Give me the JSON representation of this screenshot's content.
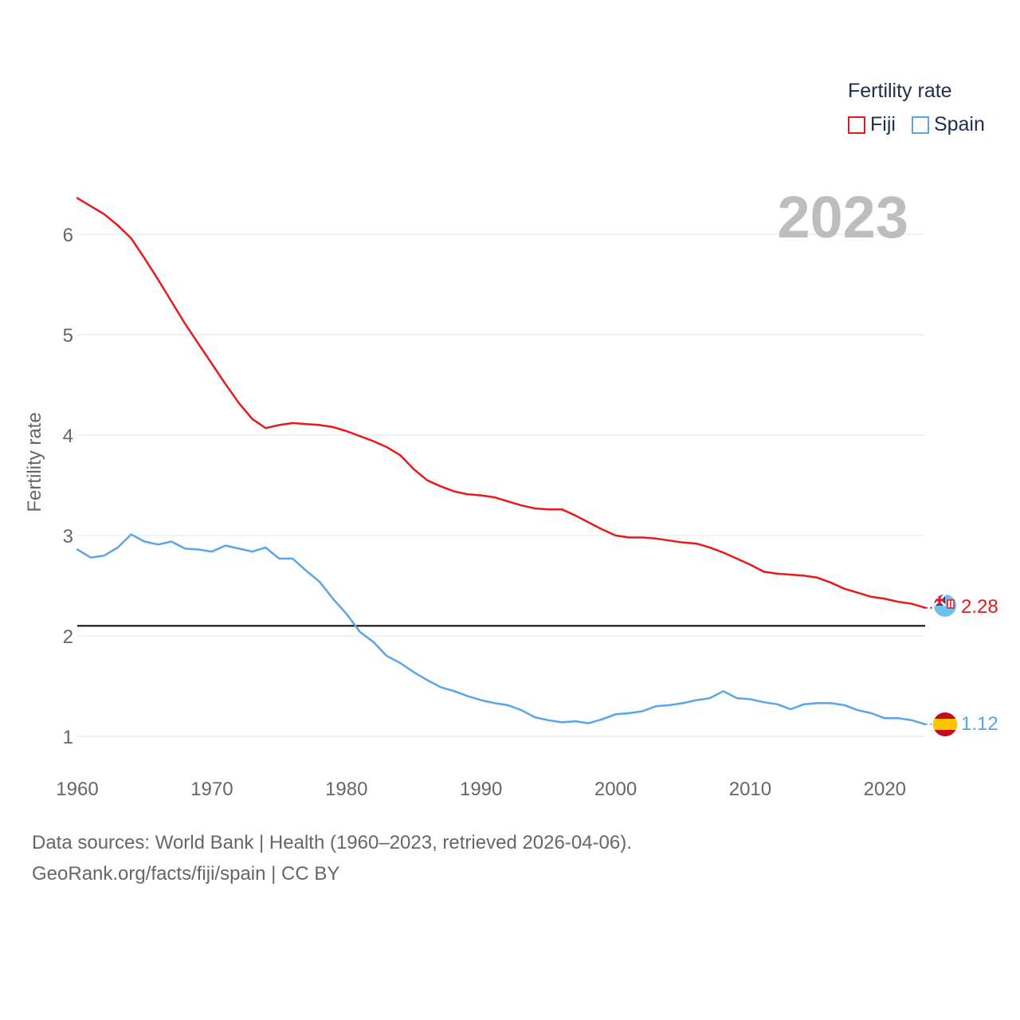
{
  "chart_data": {
    "type": "line",
    "year_label": "2023",
    "legend_title": "Fertility rate",
    "ylabel": "Fertility rate",
    "xlabel": "",
    "xlim": [
      1960,
      2023
    ],
    "ylim": [
      0.7,
      6.6
    ],
    "x_ticks": [
      1960,
      1970,
      1980,
      1990,
      2000,
      2010,
      2020
    ],
    "y_ticks": [
      1,
      2,
      3,
      4,
      5,
      6
    ],
    "reference_line": 2.1,
    "series": [
      {
        "name": "Fiji",
        "color": "#e8191a",
        "end_label": "2.28",
        "x": [
          1960,
          1961,
          1962,
          1963,
          1964,
          1965,
          1966,
          1967,
          1968,
          1969,
          1970,
          1971,
          1972,
          1973,
          1974,
          1975,
          1976,
          1977,
          1978,
          1979,
          1980,
          1981,
          1982,
          1983,
          1984,
          1985,
          1986,
          1987,
          1988,
          1989,
          1990,
          1991,
          1992,
          1993,
          1994,
          1995,
          1996,
          1997,
          1998,
          1999,
          2000,
          2001,
          2002,
          2003,
          2004,
          2005,
          2006,
          2007,
          2008,
          2009,
          2010,
          2011,
          2012,
          2013,
          2014,
          2015,
          2016,
          2017,
          2018,
          2019,
          2020,
          2021,
          2022,
          2023
        ],
        "values": [
          6.36,
          6.28,
          6.2,
          6.09,
          5.96,
          5.76,
          5.55,
          5.33,
          5.11,
          4.91,
          4.71,
          4.51,
          4.32,
          4.16,
          4.07,
          4.1,
          4.12,
          4.11,
          4.1,
          4.08,
          4.04,
          3.99,
          3.94,
          3.88,
          3.8,
          3.66,
          3.55,
          3.49,
          3.44,
          3.41,
          3.4,
          3.38,
          3.34,
          3.3,
          3.27,
          3.26,
          3.26,
          3.2,
          3.13,
          3.06,
          3.0,
          2.98,
          2.98,
          2.97,
          2.95,
          2.93,
          2.92,
          2.88,
          2.83,
          2.77,
          2.71,
          2.64,
          2.62,
          2.61,
          2.6,
          2.58,
          2.53,
          2.47,
          2.43,
          2.39,
          2.37,
          2.34,
          2.32,
          2.28
        ]
      },
      {
        "name": "Spain",
        "color": "#5aa5e6",
        "end_label": "1.12",
        "x": [
          1960,
          1961,
          1962,
          1963,
          1964,
          1965,
          1966,
          1967,
          1968,
          1969,
          1970,
          1971,
          1972,
          1973,
          1974,
          1975,
          1976,
          1977,
          1978,
          1979,
          1980,
          1981,
          1982,
          1983,
          1984,
          1985,
          1986,
          1987,
          1988,
          1989,
          1990,
          1991,
          1992,
          1993,
          1994,
          1995,
          1996,
          1997,
          1998,
          1999,
          2000,
          2001,
          2002,
          2003,
          2004,
          2005,
          2006,
          2007,
          2008,
          2009,
          2010,
          2011,
          2012,
          2013,
          2014,
          2015,
          2016,
          2017,
          2018,
          2019,
          2020,
          2021,
          2022,
          2023
        ],
        "values": [
          2.86,
          2.78,
          2.8,
          2.88,
          3.01,
          2.94,
          2.91,
          2.94,
          2.87,
          2.86,
          2.84,
          2.9,
          2.87,
          2.84,
          2.88,
          2.77,
          2.77,
          2.65,
          2.54,
          2.37,
          2.22,
          2.04,
          1.94,
          1.8,
          1.73,
          1.64,
          1.56,
          1.49,
          1.45,
          1.4,
          1.36,
          1.33,
          1.31,
          1.26,
          1.19,
          1.16,
          1.14,
          1.15,
          1.13,
          1.17,
          1.22,
          1.23,
          1.25,
          1.3,
          1.31,
          1.33,
          1.36,
          1.38,
          1.45,
          1.38,
          1.37,
          1.34,
          1.32,
          1.27,
          1.32,
          1.33,
          1.33,
          1.31,
          1.26,
          1.23,
          1.18,
          1.18,
          1.16,
          1.12
        ]
      }
    ]
  },
  "footer": {
    "sources": "Data sources: World Bank | Health (1960–2023, retrieved 2026-04-06).",
    "credit": "GeoRank.org/facts/fiji/spain | CC BY"
  }
}
